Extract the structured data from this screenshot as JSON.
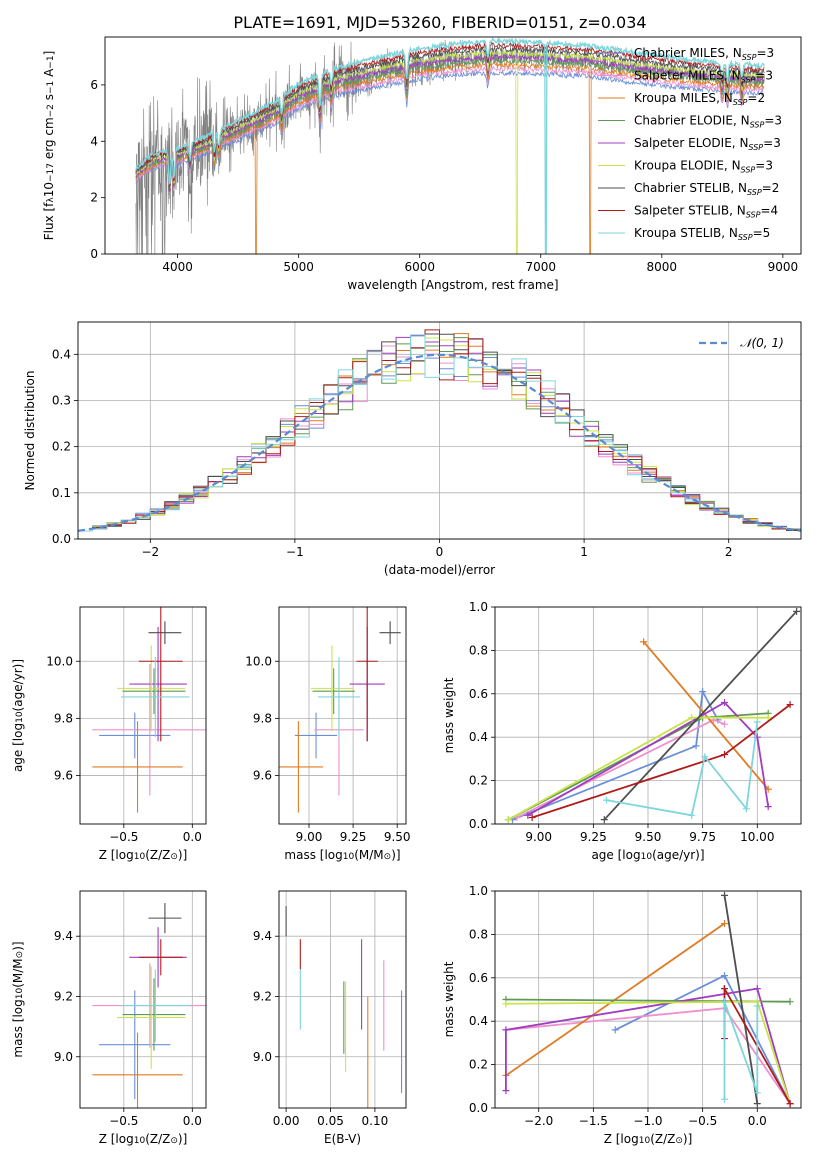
{
  "figure": {
    "suptitle": "PLATE=1691, MJD=53260, FIBERID=0151, z=0.034"
  },
  "colors": {
    "chabrier_miles": "#6b8fd8",
    "salpeter_miles": "#ee8fcf",
    "kroupa_miles": "#e07b22",
    "chabrier_elodie": "#5e9a54",
    "salpeter_elodie": "#a03cc0",
    "kroupa_elodie": "#c9e44a",
    "chabrier_stelib": "#4e4e4e",
    "salpeter_stelib": "#b01c1c",
    "kroupa_stelib": "#7dd6dc",
    "data": "#7f7f7f",
    "gaussian": "#5a8ad0",
    "grid": "#b0b0b0"
  },
  "chart_data": [
    {
      "type": "line",
      "title": "",
      "xlabel": "wavelength [Angstrom, rest frame]",
      "ylabel_parts": [
        "Flux [f",
        "λ",
        "10",
        "−17",
        " erg cm",
        "−2",
        " s",
        "−1",
        " A",
        "−1",
        "]"
      ],
      "xlim": [
        3400,
        9150
      ],
      "ylim": [
        0,
        7.7
      ],
      "xticks": [
        4000,
        5000,
        6000,
        7000,
        8000,
        9000
      ],
      "yticks": [
        0,
        2,
        4,
        6
      ],
      "legend_placement": "upper-right",
      "legend": [
        {
          "name": "Chabrier MILES",
          "nssp": "3"
        },
        {
          "name": "Salpeter MILES",
          "nssp": "3"
        },
        {
          "name": "Kroupa MILES",
          "nssp": "2"
        },
        {
          "name": "Chabrier ELODIE",
          "nssp": "3"
        },
        {
          "name": "Salpeter ELODIE",
          "nssp": "3"
        },
        {
          "name": "Kroupa ELODIE",
          "nssp": "3"
        },
        {
          "name": "Chabrier STELIB",
          "nssp": "2"
        },
        {
          "name": "Salpeter STELIB",
          "nssp": "4"
        },
        {
          "name": "Kroupa STELIB",
          "nssp": "5"
        }
      ],
      "legend_nssp_label": "N",
      "legend_nssp_sub": "SSP",
      "continuum": {
        "x": [
          3650,
          3800,
          4000,
          4200,
          4500,
          4800,
          5000,
          5300,
          5600,
          6000,
          6300,
          6600,
          7000,
          7400,
          7800,
          8200,
          8600,
          8800
        ],
        "y": [
          2.8,
          3.3,
          3.5,
          3.8,
          4.4,
          5.0,
          5.6,
          6.1,
          6.4,
          6.75,
          6.9,
          7.0,
          6.95,
          6.85,
          6.6,
          6.4,
          6.25,
          6.2
        ]
      },
      "absorption_features": [
        {
          "x": 3934,
          "depth": 0.35
        },
        {
          "x": 3969,
          "depth": 0.3
        },
        {
          "x": 4102,
          "depth": 0.15
        },
        {
          "x": 4304,
          "depth": 0.18
        },
        {
          "x": 4341,
          "depth": 0.12
        },
        {
          "x": 4861,
          "depth": 0.12
        },
        {
          "x": 5175,
          "depth": 0.18
        },
        {
          "x": 5270,
          "depth": 0.08
        },
        {
          "x": 5893,
          "depth": 0.14
        },
        {
          "x": 6563,
          "depth": 0.08
        },
        {
          "x": 8498,
          "depth": 0.08
        },
        {
          "x": 8542,
          "depth": 0.1
        },
        {
          "x": 8662,
          "depth": 0.09
        }
      ],
      "model_dropouts": [
        {
          "x": 4650,
          "series": 2
        },
        {
          "x": 7410,
          "series": 2
        },
        {
          "x": 6800,
          "series": 5
        },
        {
          "x": 7040,
          "series": 8
        }
      ]
    },
    {
      "type": "step",
      "title": "",
      "xlabel": "(data-model)/error",
      "ylabel": "Normed distribution",
      "xlim": [
        -2.5,
        2.5
      ],
      "ylim": [
        0,
        0.47
      ],
      "xticks": [
        -2,
        -1,
        0,
        1,
        2
      ],
      "xtick_labels": [
        "−2",
        "−1",
        "0",
        "1",
        "2"
      ],
      "yticks": [
        0,
        0.1,
        0.2,
        0.3,
        0.4
      ],
      "ytick_labels": [
        "0.0",
        "0.1",
        "0.2",
        "0.3",
        "0.4"
      ],
      "bin_width": 0.1,
      "legend_placement": "upper-right",
      "gaussian_label": "𝒩(0, 1)"
    },
    {
      "type": "errorbar",
      "xlabel_parts": [
        "Z [log",
        "10",
        "(Z/Z",
        "⊙",
        ")]"
      ],
      "ylabel_parts": [
        "age  [log",
        "10",
        "(age/yr)]"
      ],
      "xlim": [
        -0.82,
        0.1
      ],
      "ylim": [
        9.43,
        10.19
      ],
      "xticks": [
        -0.5,
        0.0
      ],
      "xtick_labels": [
        "−0.5",
        "0.0"
      ],
      "yticks": [
        9.6,
        9.8,
        10.0
      ],
      "ytick_labels": [
        "9.6",
        "9.8",
        "10.0"
      ],
      "points": [
        {
          "x": -0.42,
          "xerr": 0.26,
          "y": 9.74,
          "yerr": 0.08
        },
        {
          "x": -0.31,
          "xerr": 0.42,
          "y": 9.76,
          "yerr": 0.23
        },
        {
          "x": -0.4,
          "xerr": 0.33,
          "y": 9.63,
          "yerr": 0.16
        },
        {
          "x": -0.28,
          "xerr": 0.23,
          "y": 9.895,
          "yerr": 0.08
        },
        {
          "x": -0.25,
          "xerr": 0.21,
          "y": 9.92,
          "yerr": 0.2
        },
        {
          "x": -0.3,
          "xerr": 0.25,
          "y": 9.905,
          "yerr": 0.15
        },
        {
          "x": -0.2,
          "xerr": 0.12,
          "y": 10.1,
          "yerr": 0.04
        },
        {
          "x": -0.23,
          "xerr": 0.16,
          "y": 10.0,
          "yerr": 0.28
        },
        {
          "x": -0.27,
          "xerr": 0.25,
          "y": 9.875,
          "yerr": 0.14
        }
      ]
    },
    {
      "type": "errorbar",
      "xlabel_parts": [
        "mass [log",
        "10",
        "(M/M",
        "⊙",
        ")]"
      ],
      "ylabel_parts": [],
      "xlim": [
        8.83,
        9.55
      ],
      "ylim": [
        9.43,
        10.19
      ],
      "xticks": [
        9.0,
        9.25,
        9.5
      ],
      "xtick_labels": [
        "9.00",
        "9.25",
        "9.50"
      ],
      "yticks": [
        9.6,
        9.8,
        10.0
      ],
      "ytick_labels": [
        "9.6",
        "9.8",
        "10.0"
      ],
      "points": [
        {
          "x": 9.04,
          "xerr": 0.12,
          "y": 9.74,
          "yerr": 0.08
        },
        {
          "x": 9.17,
          "xerr": 0.14,
          "y": 9.76,
          "yerr": 0.23
        },
        {
          "x": 8.94,
          "xerr": 0.14,
          "y": 9.63,
          "yerr": 0.16
        },
        {
          "x": 9.14,
          "xerr": 0.12,
          "y": 9.895,
          "yerr": 0.08
        },
        {
          "x": 9.33,
          "xerr": 0.1,
          "y": 9.92,
          "yerr": 0.2
        },
        {
          "x": 9.13,
          "xerr": 0.12,
          "y": 9.905,
          "yerr": 0.15
        },
        {
          "x": 9.46,
          "xerr": 0.06,
          "y": 10.1,
          "yerr": 0.04
        },
        {
          "x": 9.33,
          "xerr": 0.06,
          "y": 10.0,
          "yerr": 0.28
        },
        {
          "x": 9.17,
          "xerr": 0.12,
          "y": 9.875,
          "yerr": 0.14
        }
      ]
    },
    {
      "type": "line",
      "xlabel_parts": [
        "age  [log",
        "10",
        "(age/yr)]"
      ],
      "ylabel": "mass weight",
      "xlim": [
        8.8,
        10.2
      ],
      "ylim": [
        0,
        1.0
      ],
      "xticks": [
        9.0,
        9.25,
        9.5,
        9.75,
        10.0
      ],
      "xtick_labels": [
        "9.00",
        "9.25",
        "9.50",
        "9.75",
        "10.00"
      ],
      "yticks": [
        0,
        0.2,
        0.4,
        0.6,
        0.8,
        1.0
      ],
      "ytick_labels": [
        "0.0",
        "0.2",
        "0.4",
        "0.6",
        "0.8",
        "1.0"
      ],
      "series": [
        {
          "x": [
            8.88,
            9.72,
            9.75,
            9.82
          ],
          "y": [
            0.02,
            0.36,
            0.61,
            0.48
          ]
        },
        {
          "x": [
            8.9,
            9.8,
            9.85
          ],
          "y": [
            0.03,
            0.48,
            0.46
          ]
        },
        {
          "x": [
            9.48,
            10.05
          ],
          "y": [
            0.84,
            0.16
          ]
        },
        {
          "x": [
            8.86,
            9.75,
            10.05
          ],
          "y": [
            0.02,
            0.49,
            0.51
          ]
        },
        {
          "x": [
            8.95,
            9.85,
            10.0,
            10.05
          ],
          "y": [
            0.04,
            0.56,
            0.4,
            0.08
          ]
        },
        {
          "x": [
            8.86,
            9.7,
            10.05
          ],
          "y": [
            0.02,
            0.49,
            0.49
          ]
        },
        {
          "x": [
            9.3,
            10.18
          ],
          "y": [
            0.02,
            0.98
          ]
        },
        {
          "x": [
            8.97,
            9.85,
            10.15
          ],
          "y": [
            0.03,
            0.32,
            0.55
          ]
        },
        {
          "x": [
            9.31,
            9.7,
            9.76,
            9.95,
            10.0
          ],
          "y": [
            0.11,
            0.04,
            0.31,
            0.07,
            0.47
          ]
        }
      ]
    },
    {
      "type": "errorbar",
      "xlabel_parts": [
        "Z [log",
        "10",
        "(Z/Z",
        "⊙",
        ")]"
      ],
      "ylabel_parts": [
        "mass [log",
        "10",
        "(M/M",
        "⊙",
        ")]"
      ],
      "xlim": [
        -0.82,
        0.1
      ],
      "ylim": [
        8.83,
        9.55
      ],
      "xticks": [
        -0.5,
        0.0
      ],
      "xtick_labels": [
        "−0.5",
        "0.0"
      ],
      "yticks": [
        9.0,
        9.2,
        9.4
      ],
      "ytick_labels": [
        "9.0",
        "9.2",
        "9.4"
      ],
      "points": [
        {
          "x": -0.42,
          "xerr": 0.26,
          "y": 9.04,
          "yerr": 0.18
        },
        {
          "x": -0.31,
          "xerr": 0.42,
          "y": 9.17,
          "yerr": 0.14
        },
        {
          "x": -0.4,
          "xerr": 0.33,
          "y": 8.94,
          "yerr": 0.14
        },
        {
          "x": -0.28,
          "xerr": 0.23,
          "y": 9.14,
          "yerr": 0.12
        },
        {
          "x": -0.25,
          "xerr": 0.21,
          "y": 9.33,
          "yerr": 0.1
        },
        {
          "x": -0.3,
          "xerr": 0.25,
          "y": 9.13,
          "yerr": 0.17
        },
        {
          "x": -0.2,
          "xerr": 0.12,
          "y": 9.46,
          "yerr": 0.05
        },
        {
          "x": -0.23,
          "xerr": 0.16,
          "y": 9.33,
          "yerr": 0.06
        },
        {
          "x": -0.27,
          "xerr": 0.25,
          "y": 9.17,
          "yerr": 0.12
        }
      ]
    },
    {
      "type": "errorbar",
      "xlabel": "E(B-V)",
      "ylabel_parts": [],
      "xlim": [
        -0.008,
        0.135
      ],
      "ylim": [
        8.83,
        9.55
      ],
      "xticks": [
        0.0,
        0.05,
        0.1
      ],
      "xtick_labels": [
        "0.00",
        "0.05",
        "0.10"
      ],
      "yticks": [
        9.0,
        9.2,
        9.4
      ],
      "ytick_labels": [
        "9.0",
        "9.2",
        "9.4"
      ],
      "points": [
        {
          "x": 0.13,
          "xerr": 0,
          "y": 9.05,
          "yerr": 0.17
        },
        {
          "x": 0.11,
          "xerr": 0,
          "y": 9.17,
          "yerr": 0.15
        },
        {
          "x": 0.092,
          "xerr": 0,
          "y": 9.0,
          "yerr": 0.2
        },
        {
          "x": 0.065,
          "xerr": 0,
          "y": 9.13,
          "yerr": 0.12
        },
        {
          "x": 0.085,
          "xerr": 0,
          "y": 9.24,
          "yerr": 0.15
        },
        {
          "x": 0.067,
          "xerr": 0,
          "y": 9.1,
          "yerr": 0.15
        },
        {
          "x": 0.0,
          "xerr": 0,
          "y": 9.45,
          "yerr": 0.05
        },
        {
          "x": 0.016,
          "xerr": 0,
          "y": 9.34,
          "yerr": 0.05
        },
        {
          "x": 0.016,
          "xerr": 0,
          "y": 9.19,
          "yerr": 0.1
        }
      ]
    },
    {
      "type": "line",
      "xlabel_parts": [
        "Z [log",
        "10",
        "(Z/Z",
        "⊙",
        ")]"
      ],
      "ylabel": "mass weight",
      "xlim": [
        -2.4,
        0.4
      ],
      "ylim": [
        0,
        1.0
      ],
      "xticks": [
        -2.0,
        -1.5,
        -1.0,
        -0.5,
        0.0
      ],
      "xtick_labels": [
        "−2.0",
        "−1.5",
        "−1.0",
        "−0.5",
        "0.0"
      ],
      "yticks": [
        0,
        0.2,
        0.4,
        0.6,
        0.8,
        1.0
      ],
      "ytick_labels": [
        "0.0",
        "0.2",
        "0.4",
        "0.6",
        "0.8",
        "1.0"
      ],
      "series": [
        {
          "x": [
            -1.3,
            -0.3,
            0.3
          ],
          "y": [
            0.36,
            0.61,
            0.02
          ]
        },
        {
          "x": [
            -2.3,
            -0.3,
            0.3
          ],
          "y": [
            0.36,
            0.46,
            0.02
          ]
        },
        {
          "x": [
            -2.3,
            -0.3
          ],
          "y": [
            0.15,
            0.85
          ]
        },
        {
          "x": [
            -2.3,
            0.3
          ],
          "y": [
            0.5,
            0.49
          ]
        },
        {
          "x": [
            -2.3,
            -2.3,
            0.0,
            0.3
          ],
          "y": [
            0.08,
            0.36,
            0.55,
            0.02
          ]
        },
        {
          "x": [
            -2.3,
            0.0,
            0.3
          ],
          "y": [
            0.48,
            0.49,
            0.02
          ]
        },
        {
          "x": [
            -0.3,
            0.0
          ],
          "y": [
            0.98,
            0.02
          ]
        },
        {
          "x": [
            -0.3,
            -0.3,
            0.3
          ],
          "y": [
            0.32,
            0.55,
            0.02
          ]
        },
        {
          "x": [
            -0.3,
            -0.3,
            0.0,
            0.0
          ],
          "y": [
            0.04,
            0.49,
            0.07,
            0.47
          ]
        }
      ]
    }
  ]
}
